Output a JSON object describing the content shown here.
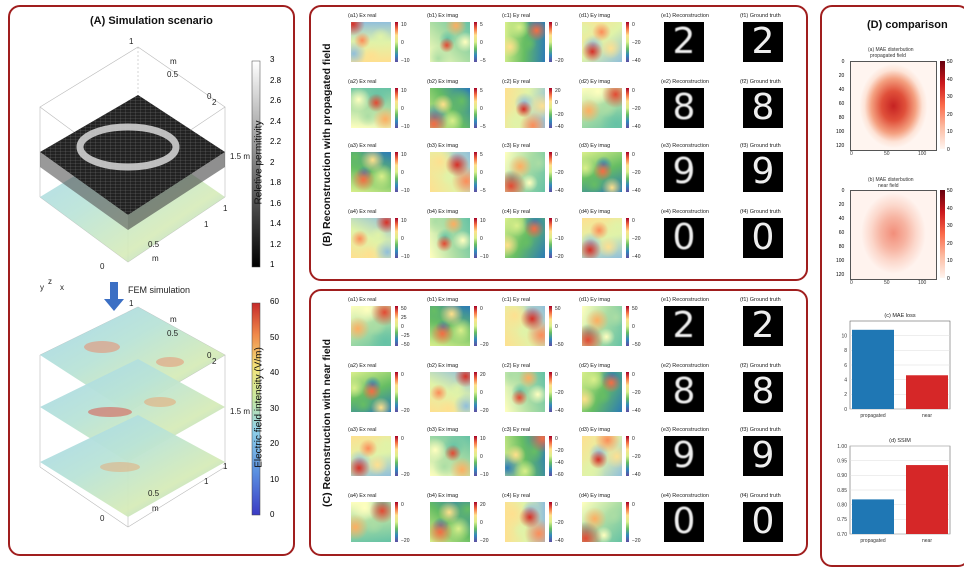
{
  "panelA": {
    "title": "(A) Simulation scenario",
    "permittivity_label": "Reletive permitivity",
    "permittivity_ticks": [
      "3",
      "2.8",
      "2.6",
      "2.4",
      "2.2",
      "2",
      "1.8",
      "1.6",
      "1.4",
      "1.2",
      "1"
    ],
    "field_label": "Electric field intensity (V/m)",
    "field_ticks": [
      "60",
      "50",
      "40",
      "30",
      "20",
      "10",
      "0"
    ],
    "arrow_label": "FEM simulation",
    "axes_top": {
      "t1": "1",
      "t2": "m",
      "t3": "0.5",
      "t4": "0",
      "t5": "2",
      "t6": "1.5 m",
      "t7": "1",
      "t8": "1",
      "t9": "0.5",
      "t10": "m",
      "t11": "0"
    },
    "axes_bottom": {
      "t1": "1",
      "t2": "m",
      "t3": "0.5",
      "t4": "0",
      "t5": "2",
      "t6": "1.5 m",
      "t7": "1",
      "t8": "1",
      "t9": "0.5",
      "t10": "m",
      "t11": "0"
    },
    "axis_triad": {
      "x": "x",
      "y": "y",
      "z": "z"
    }
  },
  "panelB": {
    "title": "(B) Reconstruction with propagated field",
    "rows": [
      {
        "cells": [
          {
            "label": "(a1) Ex real",
            "ticks": [
              "10",
              "0",
              "−10"
            ]
          },
          {
            "label": "(b1) Ex imag",
            "ticks": [
              "5",
              "0",
              "−5"
            ]
          },
          {
            "label": "(c1) Ey real",
            "ticks": [
              "0",
              "−20"
            ]
          },
          {
            "label": "(d1) Ey imag",
            "ticks": [
              "0",
              "−20",
              "−40"
            ]
          }
        ],
        "recon": "(e1) Reconstruction",
        "truth": "(f1) Ground truth",
        "digit": "2"
      },
      {
        "cells": [
          {
            "label": "(a2) Ex real",
            "ticks": [
              "10",
              "0",
              "−10"
            ]
          },
          {
            "label": "(b2) Ex imag",
            "ticks": [
              "5",
              "0",
              "−5"
            ]
          },
          {
            "label": "(c2) Ey real",
            "ticks": [
              "20",
              "0",
              "−20",
              "−40"
            ]
          },
          {
            "label": "(d2) Ey imag",
            "ticks": [
              "0",
              "−20",
              "−40"
            ]
          }
        ],
        "recon": "(e2) Reconstruction",
        "truth": "(f2) Ground truth",
        "digit": "8"
      },
      {
        "cells": [
          {
            "label": "(a3) Ex real",
            "ticks": [
              "10",
              "0",
              "−10"
            ]
          },
          {
            "label": "(b3) Ex imag",
            "ticks": [
              "5",
              "0",
              "−5"
            ]
          },
          {
            "label": "(c3) Ey real",
            "ticks": [
              "0",
              "−20",
              "−40"
            ]
          },
          {
            "label": "(d3) Ey imag",
            "ticks": [
              "0",
              "−20",
              "−40"
            ]
          }
        ],
        "recon": "(e3) Reconstruction",
        "truth": "(f3) Ground truth",
        "digit": "9"
      },
      {
        "cells": [
          {
            "label": "(a4) Ex real",
            "ticks": [
              "10",
              "0",
              "−10"
            ]
          },
          {
            "label": "(b4) Ex imag",
            "ticks": [
              "10",
              "0",
              "−10"
            ]
          },
          {
            "label": "(c4) Ey real",
            "ticks": [
              "0",
              "−10",
              "−20"
            ]
          },
          {
            "label": "(d4) Ey imag",
            "ticks": [
              "0",
              "−20",
              "−40"
            ]
          }
        ],
        "recon": "(e4) Reconstruction",
        "truth": "(f4) Ground truth",
        "digit": "0"
      }
    ]
  },
  "panelC": {
    "title": "(C) Reconstruction with near field",
    "rows": [
      {
        "cells": [
          {
            "label": "(a1) Ex real",
            "ticks": [
              "50",
              "25",
              "0",
              "−25",
              "−50"
            ]
          },
          {
            "label": "(b1) Ex imag",
            "ticks": [
              "0",
              "−20"
            ]
          },
          {
            "label": "(c1) Ey real",
            "ticks": [
              "50",
              "0",
              "−50"
            ]
          },
          {
            "label": "(d1) Ey imag",
            "ticks": [
              "50",
              "0",
              "−50"
            ]
          }
        ],
        "recon": "(e1) Reconstruction",
        "truth": "(f1) Ground truth",
        "digit": "2"
      },
      {
        "cells": [
          {
            "label": "(a2) Ex real",
            "ticks": [
              "0",
              "−20"
            ]
          },
          {
            "label": "(b2) Ex imag",
            "ticks": [
              "20",
              "0",
              "−20"
            ]
          },
          {
            "label": "(c2) Ey real",
            "ticks": [
              "0",
              "−20",
              "−40"
            ]
          },
          {
            "label": "(d2) Ey imag",
            "ticks": [
              "0",
              "−20",
              "−40"
            ]
          }
        ],
        "recon": "(e2) Reconstruction",
        "truth": "(f2) Ground truth",
        "digit": "8"
      },
      {
        "cells": [
          {
            "label": "(a3) Ex real",
            "ticks": [
              "0",
              "−20"
            ]
          },
          {
            "label": "(b3) Ex imag",
            "ticks": [
              "10",
              "0",
              "−10"
            ]
          },
          {
            "label": "(c3) Ey real",
            "ticks": [
              "0",
              "−20",
              "−40",
              "−60"
            ]
          },
          {
            "label": "(d3) Ey imag",
            "ticks": [
              "0",
              "−20",
              "−40"
            ]
          }
        ],
        "recon": "(e3) Reconstruction",
        "truth": "(f3) Ground truth",
        "digit": "9"
      },
      {
        "cells": [
          {
            "label": "(a4) Ex real",
            "ticks": [
              "0",
              "−20"
            ]
          },
          {
            "label": "(b4) Ex imag",
            "ticks": [
              "20",
              "0",
              "−20"
            ]
          },
          {
            "label": "(c4) Ey real",
            "ticks": [
              "0",
              "−20",
              "−40"
            ]
          },
          {
            "label": "(d4) Ey imag",
            "ticks": [
              "0",
              "−20"
            ]
          }
        ],
        "recon": "(e4) Reconstruction",
        "truth": "(f4) Ground truth",
        "digit": "0"
      }
    ]
  },
  "panelD": {
    "title": "(D) comparison",
    "heat1": {
      "title1": "(a) MAE disterbution",
      "title2": "propagated field",
      "cbar_ticks": [
        "50",
        "40",
        "30",
        "20",
        "10",
        "0"
      ],
      "yticks": [
        "0",
        "20",
        "40",
        "60",
        "80",
        "100",
        "120"
      ],
      "xticks": [
        "0",
        "50",
        "100"
      ]
    },
    "heat2": {
      "title1": "(b) MAE disterbution",
      "title2": "near field",
      "cbar_ticks": [
        "50",
        "40",
        "30",
        "20",
        "10",
        "0"
      ],
      "yticks": [
        "0",
        "20",
        "40",
        "60",
        "80",
        "100",
        "120"
      ],
      "xticks": [
        "0",
        "50",
        "100"
      ]
    }
  },
  "chart_data": [
    {
      "type": "bar",
      "title": "(c) MAE loss",
      "categories": [
        "propagated",
        "near"
      ],
      "values": [
        10.8,
        4.6
      ],
      "ylim": [
        0,
        12
      ],
      "yticks": [
        "0",
        "2",
        "4",
        "6",
        "8",
        "10"
      ],
      "colors": [
        "#1f77b4",
        "#d62728"
      ],
      "grid": true
    },
    {
      "type": "bar",
      "title": "(d) SSIM",
      "categories": [
        "propagated",
        "near"
      ],
      "values": [
        0.818,
        0.935
      ],
      "ylim": [
        0.7,
        1.0
      ],
      "yticks": [
        "0.70",
        "0.75",
        "0.80",
        "0.85",
        "0.90",
        "0.95",
        "1.00"
      ],
      "colors": [
        "#1f77b4",
        "#d62728"
      ],
      "grid": true
    }
  ]
}
